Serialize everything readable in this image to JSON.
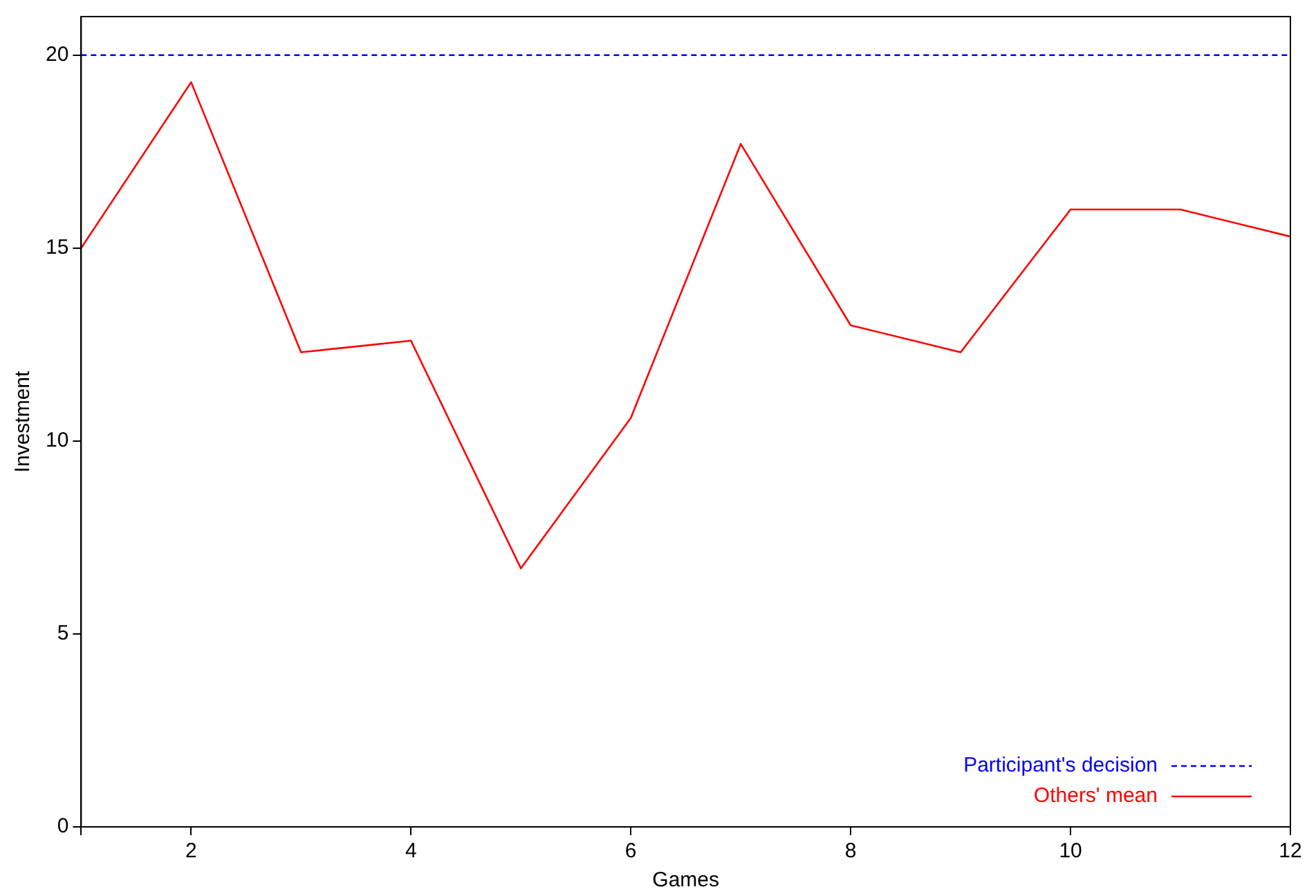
{
  "chart_data": {
    "type": "line",
    "xlabel": "Games",
    "ylabel": "Investment",
    "x": [
      1,
      2,
      3,
      4,
      5,
      6,
      7,
      8,
      9,
      10,
      11,
      12
    ],
    "series": [
      {
        "name": "Participant's decision",
        "color": "#0000ff",
        "line_style": "dashed",
        "values": [
          20,
          20,
          20,
          20,
          20,
          20,
          20,
          20,
          20,
          20,
          20,
          20
        ]
      },
      {
        "name": "Others' mean",
        "color": "#ff0000",
        "line_style": "solid",
        "values": [
          15,
          19.3,
          12.3,
          12.6,
          6.7,
          10.6,
          17.7,
          13,
          12.3,
          16,
          16,
          15.3
        ]
      }
    ],
    "xlim": [
      1,
      12
    ],
    "xticks": [
      {
        "value": 1,
        "label": null
      },
      2,
      4,
      6,
      8,
      10,
      12
    ],
    "ylim": [
      0,
      21
    ],
    "yticks": [
      0,
      5,
      10,
      15,
      20
    ],
    "grid": false,
    "legend": "bottom right",
    "marker": "none"
  }
}
